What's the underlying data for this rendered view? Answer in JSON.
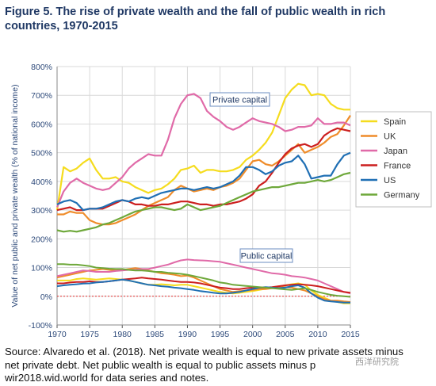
{
  "figure": {
    "title": "Figure 5. The rise of private wealth and the fall of public wealth in rich countries, 1970-2015",
    "source_lines": [
      "Source: Alvaredo et al. (2018). Net private wealth is equal to new private assets minus",
      "net private debt. Net public wealth is equal to public assets minus p",
      "wir2018.wid.world for data series and notes."
    ],
    "watermark": "西洋研究院"
  },
  "chart_data": {
    "type": "line",
    "title": "",
    "xlabel": "",
    "ylabel": "Value of net public and private wealth (% of national income)",
    "xlim": [
      1970,
      2015
    ],
    "ylim": [
      -100,
      800
    ],
    "xticks": [
      "1970",
      "1975",
      "1980",
      "1985",
      "1990",
      "1995",
      "2000",
      "2005",
      "2010",
      "2015"
    ],
    "yticks": [
      "-100%",
      "0%",
      "100%",
      "200%",
      "300%",
      "400%",
      "500%",
      "600%",
      "700%",
      "800%"
    ],
    "grid": true,
    "legend_position": "right",
    "annotations": [
      "Private capital",
      "Public capital"
    ],
    "x": [
      1970,
      1971,
      1972,
      1973,
      1974,
      1975,
      1976,
      1977,
      1978,
      1979,
      1980,
      1981,
      1982,
      1983,
      1984,
      1985,
      1986,
      1987,
      1988,
      1989,
      1990,
      1991,
      1992,
      1993,
      1994,
      1995,
      1996,
      1997,
      1998,
      1999,
      2000,
      2001,
      2002,
      2003,
      2004,
      2005,
      2006,
      2007,
      2008,
      2009,
      2010,
      2011,
      2012,
      2013,
      2014,
      2015
    ],
    "series": [
      {
        "name": "Spain",
        "group": "private",
        "color": "#f5dc1e",
        "values": [
          300,
          450,
          435,
          445,
          465,
          480,
          440,
          410,
          410,
          415,
          400,
          395,
          380,
          370,
          360,
          370,
          375,
          390,
          410,
          440,
          445,
          455,
          430,
          440,
          440,
          435,
          435,
          440,
          450,
          475,
          490,
          510,
          535,
          570,
          630,
          690,
          720,
          740,
          735,
          700,
          705,
          700,
          670,
          655,
          650,
          650
        ]
      },
      {
        "name": "UK",
        "group": "private",
        "color": "#ef8c2a",
        "values": [
          285,
          285,
          295,
          290,
          290,
          265,
          255,
          250,
          250,
          255,
          265,
          275,
          285,
          300,
          315,
          325,
          335,
          345,
          370,
          385,
          375,
          365,
          370,
          375,
          370,
          380,
          385,
          395,
          410,
          440,
          470,
          475,
          460,
          455,
          470,
          490,
          510,
          530,
          500,
          510,
          520,
          535,
          555,
          565,
          595,
          630
        ]
      },
      {
        "name": "Japan",
        "group": "private",
        "color": "#e06aa8",
        "values": [
          310,
          365,
          395,
          410,
          395,
          385,
          375,
          370,
          375,
          395,
          415,
          445,
          465,
          480,
          495,
          490,
          490,
          545,
          620,
          670,
          700,
          705,
          690,
          645,
          625,
          610,
          590,
          580,
          590,
          605,
          620,
          610,
          605,
          600,
          590,
          575,
          580,
          590,
          590,
          595,
          620,
          600,
          600,
          605,
          605,
          595
        ]
      },
      {
        "name": "France",
        "group": "private",
        "color": "#cc1f1f",
        "values": [
          300,
          305,
          310,
          300,
          300,
          305,
          305,
          305,
          315,
          325,
          335,
          330,
          320,
          320,
          315,
          315,
          320,
          320,
          325,
          330,
          330,
          325,
          320,
          320,
          315,
          320,
          320,
          325,
          330,
          340,
          355,
          385,
          400,
          430,
          465,
          495,
          515,
          525,
          530,
          520,
          530,
          560,
          575,
          585,
          580,
          575
        ]
      },
      {
        "name": "US",
        "group": "private",
        "color": "#1f6fb4",
        "values": [
          320,
          330,
          335,
          325,
          300,
          305,
          305,
          310,
          320,
          330,
          335,
          330,
          340,
          345,
          340,
          350,
          360,
          365,
          370,
          375,
          375,
          370,
          375,
          380,
          375,
          380,
          390,
          400,
          420,
          450,
          450,
          440,
          425,
          435,
          455,
          465,
          470,
          490,
          460,
          410,
          415,
          420,
          420,
          460,
          490,
          500
        ]
      },
      {
        "name": "Germany",
        "group": "private",
        "color": "#6ea83a",
        "values": [
          230,
          225,
          228,
          225,
          230,
          235,
          240,
          250,
          255,
          265,
          275,
          285,
          295,
          300,
          305,
          310,
          310,
          305,
          300,
          305,
          320,
          310,
          300,
          305,
          310,
          315,
          325,
          335,
          345,
          355,
          365,
          370,
          375,
          380,
          380,
          385,
          390,
          395,
          395,
          400,
          405,
          400,
          405,
          415,
          425,
          430
        ]
      },
      {
        "name": "Spain",
        "group": "public",
        "color": "#f5dc1e",
        "values": [
          55,
          55,
          55,
          60,
          62,
          60,
          58,
          60,
          62,
          60,
          58,
          55,
          50,
          45,
          40,
          40,
          42,
          40,
          38,
          40,
          40,
          35,
          30,
          25,
          20,
          15,
          12,
          10,
          12,
          15,
          18,
          22,
          26,
          30,
          35,
          38,
          42,
          45,
          40,
          20,
          5,
          -5,
          -15,
          -20,
          -25,
          -25
        ]
      },
      {
        "name": "UK",
        "group": "public",
        "color": "#ef8c2a",
        "values": [
          65,
          70,
          75,
          80,
          85,
          90,
          92,
          95,
          92,
          90,
          92,
          95,
          98,
          95,
          90,
          85,
          80,
          78,
          75,
          70,
          72,
          65,
          55,
          45,
          35,
          25,
          20,
          15,
          18,
          20,
          22,
          25,
          25,
          28,
          30,
          32,
          30,
          25,
          20,
          10,
          0,
          -10,
          -15,
          -15,
          -18,
          -20
        ]
      },
      {
        "name": "Japan",
        "group": "public",
        "color": "#e06aa8",
        "values": [
          70,
          75,
          80,
          85,
          90,
          88,
          85,
          85,
          85,
          88,
          90,
          92,
          92,
          95,
          95,
          100,
          105,
          110,
          118,
          125,
          128,
          126,
          125,
          124,
          122,
          120,
          115,
          110,
          105,
          100,
          95,
          90,
          85,
          80,
          78,
          75,
          70,
          68,
          65,
          60,
          55,
          45,
          35,
          25,
          15,
          10
        ]
      },
      {
        "name": "France",
        "group": "public",
        "color": "#cc1f1f",
        "values": [
          45,
          45,
          48,
          50,
          50,
          52,
          50,
          50,
          52,
          55,
          58,
          60,
          62,
          65,
          62,
          60,
          58,
          55,
          52,
          50,
          50,
          48,
          45,
          40,
          35,
          30,
          28,
          25,
          25,
          28,
          30,
          30,
          30,
          32,
          35,
          38,
          40,
          42,
          40,
          38,
          35,
          30,
          25,
          20,
          15,
          12
        ]
      },
      {
        "name": "US",
        "group": "public",
        "color": "#1f6fb4",
        "values": [
          35,
          38,
          40,
          42,
          44,
          45,
          48,
          50,
          52,
          55,
          58,
          55,
          50,
          45,
          40,
          38,
          35,
          33,
          30,
          28,
          25,
          22,
          18,
          15,
          12,
          10,
          10,
          12,
          15,
          20,
          25,
          30,
          32,
          30,
          28,
          30,
          35,
          38,
          30,
          10,
          -5,
          -15,
          -18,
          -20,
          -22,
          -22
        ]
      },
      {
        "name": "Germany",
        "group": "public",
        "color": "#6ea83a",
        "values": [
          112,
          112,
          110,
          110,
          108,
          105,
          100,
          98,
          96,
          95,
          95,
          92,
          90,
          90,
          88,
          85,
          85,
          82,
          80,
          78,
          75,
          70,
          65,
          60,
          55,
          48,
          45,
          40,
          38,
          36,
          34,
          32,
          30,
          28,
          26,
          24,
          22,
          25,
          28,
          22,
          15,
          10,
          5,
          2,
          0,
          -2
        ]
      }
    ]
  }
}
